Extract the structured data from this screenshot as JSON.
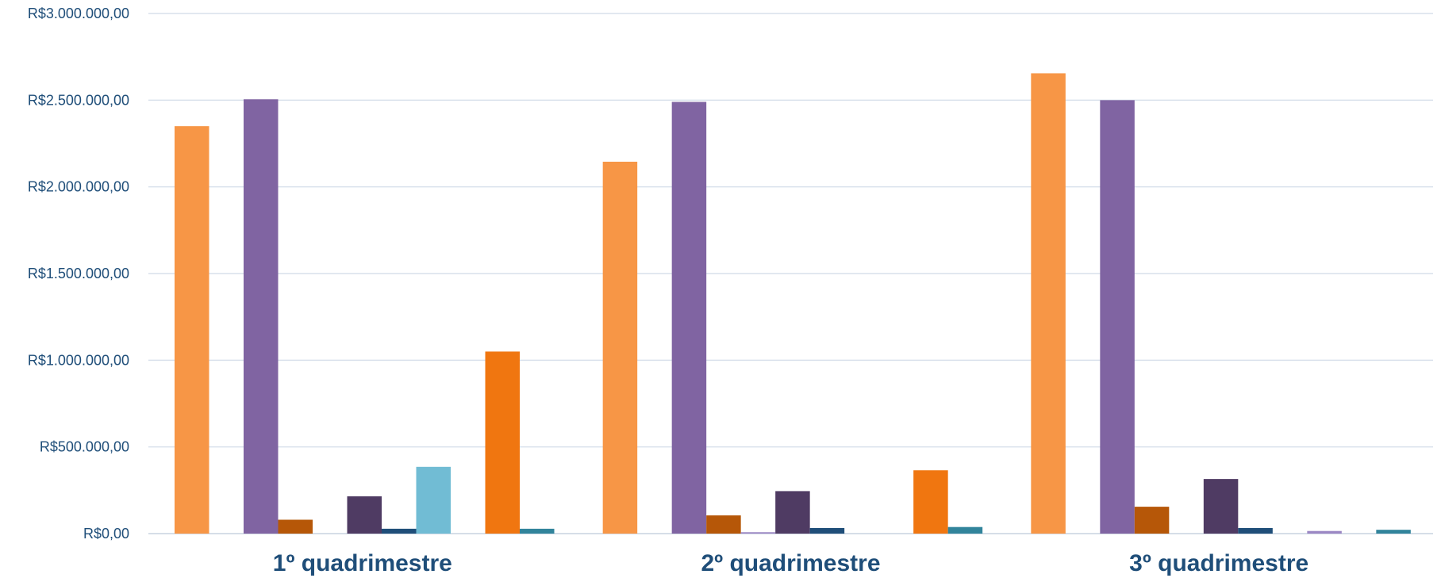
{
  "chart_data": {
    "type": "bar",
    "title": "",
    "xlabel": "",
    "ylabel": "",
    "ylim": [
      0,
      3000000
    ],
    "y_ticks": [
      0,
      500000,
      1000000,
      1500000,
      2000000,
      2500000,
      3000000
    ],
    "y_tick_labels": [
      "R$0,00",
      "R$500.000,00",
      "R$1.000.000,00",
      "R$1.500.000,00",
      "R$2.000.000,00",
      "R$2.500.000,00",
      "R$3.000.000,00"
    ],
    "grid": true,
    "legend": "none",
    "categories": [
      "1º quadrimestre",
      "2º quadrimestre",
      "3º quadrimestre"
    ],
    "series": [
      {
        "color": "#f79646",
        "values": [
          2350000,
          2145000,
          2655000
        ]
      },
      {
        "color": "#e4ecf7",
        "values": [
          0,
          0,
          0
        ]
      },
      {
        "color": "#8064a2",
        "values": [
          2505000,
          2490000,
          2500000
        ]
      },
      {
        "color": "#b65708",
        "values": [
          80000,
          105000,
          155000
        ]
      },
      {
        "color": "#9b87c4",
        "values": [
          0,
          8000,
          0
        ]
      },
      {
        "color": "#4f3b63",
        "values": [
          215000,
          245000,
          315000
        ]
      },
      {
        "color": "#1f4e79",
        "values": [
          28000,
          32000,
          32000
        ]
      },
      {
        "color": "#71bcd4",
        "values": [
          385000,
          0,
          0
        ]
      },
      {
        "color": "#9b87c4",
        "values": [
          0,
          0,
          15000
        ]
      },
      {
        "color": "#f07610",
        "values": [
          1050000,
          365000,
          0
        ]
      },
      {
        "color": "#31849b",
        "values": [
          28000,
          38000,
          22000
        ]
      }
    ]
  }
}
